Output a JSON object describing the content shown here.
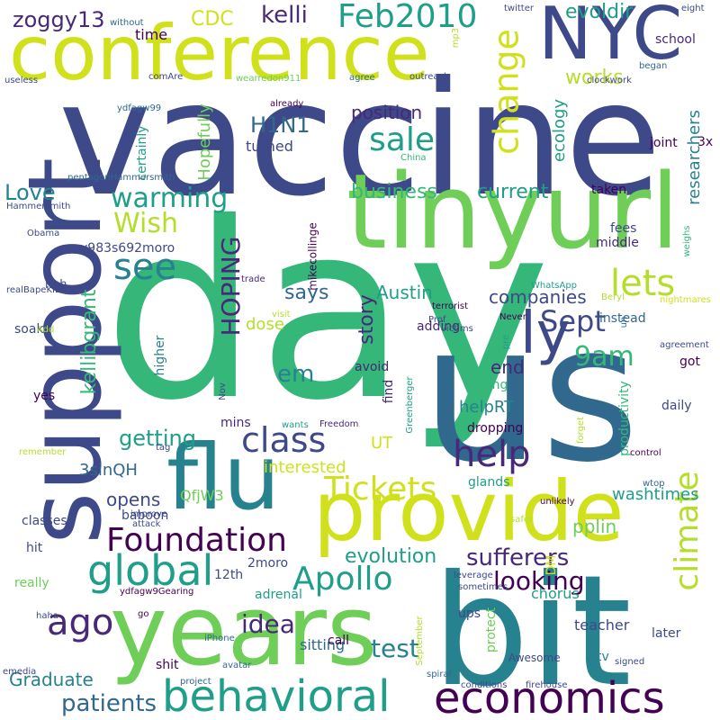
{
  "palette": {
    "c1": "#440154",
    "c2": "#482878",
    "c3": "#3e4989",
    "c4": "#31688e",
    "c5": "#26828e",
    "c6": "#1f9e89",
    "c7": "#35b779",
    "c8": "#6ece58",
    "c9": "#b5de2b",
    "c10": "#d0e11c",
    "c11": "#fde725"
  },
  "words": [
    {
      "text": "vaccine",
      "color": "c3"
    },
    {
      "text": "day",
      "color": "c7"
    },
    {
      "text": "us",
      "color": "c4"
    },
    {
      "text": "tinyurl",
      "color": "c8"
    },
    {
      "text": "support",
      "color": "c3"
    },
    {
      "text": "conference",
      "color": "c10"
    },
    {
      "text": "bit",
      "color": "c5"
    },
    {
      "text": "years",
      "color": "c8"
    },
    {
      "text": "provide",
      "color": "c10"
    },
    {
      "text": "flu",
      "color": "c5"
    },
    {
      "text": "NYC",
      "color": "c3"
    },
    {
      "text": "behavioral",
      "color": "c6"
    },
    {
      "text": "economics",
      "color": "c1"
    },
    {
      "text": "climate",
      "color": "c9"
    },
    {
      "text": "global",
      "color": "c6"
    },
    {
      "text": "change",
      "color": "c10"
    },
    {
      "text": "ly",
      "color": "c3"
    },
    {
      "text": "Foundation",
      "color": "c1"
    },
    {
      "text": "Apollo",
      "color": "c6"
    },
    {
      "text": "lets",
      "color": "c9"
    },
    {
      "text": "Tickets",
      "color": "c10"
    },
    {
      "text": "class",
      "color": "c3"
    },
    {
      "text": "help",
      "color": "c2"
    },
    {
      "text": "ago",
      "color": "c2"
    },
    {
      "text": "see",
      "color": "c5"
    },
    {
      "text": "Feb2010",
      "color": "c6"
    },
    {
      "text": "sale",
      "color": "c6"
    },
    {
      "text": "Sept",
      "color": "c3"
    },
    {
      "text": "9am",
      "color": "c7"
    },
    {
      "text": "warming",
      "color": "c6"
    },
    {
      "text": "Wish",
      "color": "c9"
    },
    {
      "text": "HOPING",
      "color": "c2"
    },
    {
      "text": "idea",
      "color": "c2"
    },
    {
      "text": "test",
      "color": "c5"
    },
    {
      "text": "looking",
      "color": "c1"
    },
    {
      "text": "sufferers",
      "color": "c2"
    },
    {
      "text": "em",
      "color": "c5"
    },
    {
      "text": "patients",
      "color": "c4"
    },
    {
      "text": "evolution",
      "color": "c6"
    },
    {
      "text": "getting",
      "color": "c6"
    },
    {
      "text": "kelli",
      "color": "c2"
    },
    {
      "text": "zoggy13",
      "color": "c2"
    },
    {
      "text": "CDC",
      "color": "c10"
    },
    {
      "text": "works",
      "color": "c9"
    },
    {
      "text": "evoldir",
      "color": "c6"
    },
    {
      "text": "H1N1",
      "color": "c4"
    },
    {
      "text": "business",
      "color": "c7"
    },
    {
      "text": "current",
      "color": "c6"
    },
    {
      "text": "Love",
      "color": "c5"
    },
    {
      "text": "position",
      "color": "c2"
    },
    {
      "text": "says",
      "color": "c4"
    },
    {
      "text": "story",
      "color": "c2"
    },
    {
      "text": "companies",
      "color": "c3"
    },
    {
      "text": "Austin",
      "color": "c6"
    },
    {
      "text": "end",
      "color": "c2"
    },
    {
      "text": "kellibgrant",
      "color": "c7"
    },
    {
      "text": "Hopefully",
      "color": "c8"
    },
    {
      "text": "ecology",
      "color": "c6"
    },
    {
      "text": "researchers",
      "color": "c5"
    },
    {
      "text": "washtimes",
      "color": "c6"
    },
    {
      "text": "opens",
      "color": "c3"
    },
    {
      "text": "Graduate",
      "color": "c5"
    },
    {
      "text": "pplin",
      "color": "c8"
    },
    {
      "text": "UT",
      "color": "c10"
    },
    {
      "text": "interested",
      "color": "c10"
    },
    {
      "text": "dose",
      "color": "c9"
    },
    {
      "text": "helpRT",
      "color": "c5"
    },
    {
      "text": "3sinQH",
      "color": "c4"
    },
    {
      "text": "QfjW3",
      "color": "c8"
    },
    {
      "text": "sitting",
      "color": "c4"
    },
    {
      "text": "chorus",
      "color": "c6"
    },
    {
      "text": "teacher",
      "color": "c3"
    },
    {
      "text": "time",
      "color": "c1"
    },
    {
      "text": "school",
      "color": "c2"
    },
    {
      "text": "turned",
      "color": "c3"
    },
    {
      "text": "certainly",
      "color": "c6"
    },
    {
      "text": "joint",
      "color": "c1"
    },
    {
      "text": "3x",
      "color": "c1"
    },
    {
      "text": "taken",
      "color": "c1"
    },
    {
      "text": "fees",
      "color": "c3"
    },
    {
      "text": "middle",
      "color": "c2"
    },
    {
      "text": "instead",
      "color": "c4"
    },
    {
      "text": "y983s692moro",
      "color": "c3"
    },
    {
      "text": "mikecollinge",
      "color": "c1"
    },
    {
      "text": "heh",
      "color": "c3"
    },
    {
      "text": "adding",
      "color": "c2"
    },
    {
      "text": "find",
      "color": "c2"
    },
    {
      "text": "eating",
      "color": "c7"
    },
    {
      "text": "got",
      "color": "c1"
    },
    {
      "text": "daily",
      "color": "c3"
    },
    {
      "text": "soaks",
      "color": "c3"
    },
    {
      "text": "avoid",
      "color": "c2"
    },
    {
      "text": "higher",
      "color": "c5"
    },
    {
      "text": "yes",
      "color": "c1"
    },
    {
      "text": "mins",
      "color": "c2"
    },
    {
      "text": "baboon",
      "color": "c3"
    },
    {
      "text": "classes",
      "color": "c3"
    },
    {
      "text": "hit",
      "color": "c3"
    },
    {
      "text": "really",
      "color": "c8"
    },
    {
      "text": "2moro",
      "color": "c3"
    },
    {
      "text": "12th",
      "color": "c3"
    },
    {
      "text": "adrenal",
      "color": "c6"
    },
    {
      "text": "ups",
      "color": "c3"
    },
    {
      "text": "protect",
      "color": "c8"
    },
    {
      "text": "productivity",
      "color": "c7"
    },
    {
      "text": "dropping",
      "color": "c1"
    },
    {
      "text": "glands",
      "color": "c6"
    },
    {
      "text": "DM",
      "color": "c10"
    },
    {
      "text": "later",
      "color": "c3"
    },
    {
      "text": "tv",
      "color": "c5"
    },
    {
      "text": "shit",
      "color": "c1"
    },
    {
      "text": "call",
      "color": "c1"
    },
    {
      "text": "Awesome",
      "color": "c3"
    },
    {
      "text": "ydfagw99",
      "color": "c4"
    },
    {
      "text": "pentagonHammersmith",
      "color": "c4"
    },
    {
      "text": "Hammersmith",
      "color": "c3"
    },
    {
      "text": "Obama",
      "color": "c3"
    },
    {
      "text": "realBapeKID",
      "color": "c3"
    },
    {
      "text": "ydfagw9Gearing",
      "color": "c1"
    },
    {
      "text": "twitter",
      "color": "c3"
    },
    {
      "text": "without",
      "color": "c4"
    },
    {
      "text": "began",
      "color": "c4"
    },
    {
      "text": "eight",
      "color": "c3"
    },
    {
      "text": "mp3",
      "color": "c9"
    },
    {
      "text": "comAre",
      "color": "c3"
    },
    {
      "text": "useless",
      "color": "c3"
    },
    {
      "text": "wearredon911",
      "color": "c8"
    },
    {
      "text": "agree",
      "color": "c4"
    },
    {
      "text": "outreach",
      "color": "c3"
    },
    {
      "text": "clockwork",
      "color": "c3"
    },
    {
      "text": "already",
      "color": "c1"
    },
    {
      "text": "China",
      "color": "c7"
    },
    {
      "text": "weighs",
      "color": "c7"
    },
    {
      "text": "Beryl",
      "color": "c9"
    },
    {
      "text": "trade",
      "color": "c2"
    },
    {
      "text": "visit",
      "color": "c9"
    },
    {
      "text": "terrorist",
      "color": "c1"
    },
    {
      "text": "WhatsApp",
      "color": "c6"
    },
    {
      "text": "nightmares",
      "color": "c10"
    },
    {
      "text": "victims",
      "color": "c3"
    },
    {
      "text": "un",
      "color": "c4"
    },
    {
      "text": "Prof",
      "color": "c3"
    },
    {
      "text": "Never",
      "color": "c1"
    },
    {
      "text": "pre",
      "color": "c6"
    },
    {
      "text": "agreement",
      "color": "c3"
    },
    {
      "text": "Add",
      "color": "c9"
    },
    {
      "text": "Nov",
      "color": "c3"
    },
    {
      "text": "Greenberger",
      "color": "c6"
    },
    {
      "text": "wants",
      "color": "c6"
    },
    {
      "text": "Freedom",
      "color": "c2"
    },
    {
      "text": "forget",
      "color": "c9"
    },
    {
      "text": "remember",
      "color": "c9"
    },
    {
      "text": "tag",
      "color": "c3"
    },
    {
      "text": "control",
      "color": "c1"
    },
    {
      "text": "unlikely",
      "color": "c1"
    },
    {
      "text": "wtop",
      "color": "c4"
    },
    {
      "text": "improve",
      "color": "c3"
    },
    {
      "text": "attack",
      "color": "c3"
    },
    {
      "text": "safer",
      "color": "c9"
    },
    {
      "text": "leverage",
      "color": "c3"
    },
    {
      "text": "sometimes",
      "color": "c3"
    },
    {
      "text": "haha",
      "color": "c3"
    },
    {
      "text": "go",
      "color": "c1"
    },
    {
      "text": "iPhone",
      "color": "c4"
    },
    {
      "text": "September",
      "color": "c9"
    },
    {
      "text": "spiral",
      "color": "c4"
    },
    {
      "text": "emedia",
      "color": "c3"
    },
    {
      "text": "project",
      "color": "c4"
    },
    {
      "text": "avatar",
      "color": "c4"
    },
    {
      "text": "signed",
      "color": "c3"
    },
    {
      "text": "conditions",
      "color": "c3"
    },
    {
      "text": "firehouse",
      "color": "c3"
    }
  ]
}
